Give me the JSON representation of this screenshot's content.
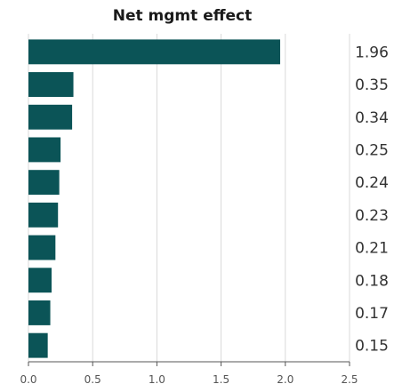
{
  "chart_data": {
    "type": "bar",
    "orientation": "horizontal",
    "title": "Net mgmt effect",
    "xlabel": "",
    "ylabel": "",
    "values": [
      1.96,
      0.35,
      0.34,
      0.25,
      0.24,
      0.23,
      0.21,
      0.18,
      0.17,
      0.15
    ],
    "value_labels": [
      "1.96",
      "0.35",
      "0.34",
      "0.25",
      "0.24",
      "0.23",
      "0.21",
      "0.18",
      "0.17",
      "0.15"
    ],
    "xlim": [
      0,
      2.5
    ],
    "xticks": [
      "0.0",
      "0.5",
      "1.0",
      "1.5",
      "2.0",
      "2.5"
    ],
    "grid": true,
    "bar_color": "#0b5457",
    "grid_color": "#d9d9d9"
  }
}
